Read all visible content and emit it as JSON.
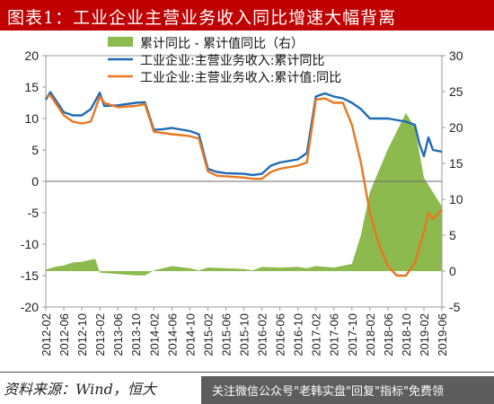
{
  "title": "图表1：工业企业主营业务收入同比增速大幅背离",
  "source": "资料来源：Wind，恒大",
  "watermark": "关注微信公众号\"老韩实盘\"回复\"指标\"免费领",
  "colors": {
    "bar_area": "#8dba4f",
    "line_yoy": "#1f6bb5",
    "line_cum_value": "#e87722",
    "title_bg": "#c00000"
  },
  "chart_data": {
    "type": "line",
    "x_tick_labels": [
      "2012-02",
      "2012-06",
      "2012-10",
      "2013-02",
      "2013-06",
      "2013-10",
      "2014-02",
      "2014-06",
      "2014-10",
      "2015-02",
      "2015-06",
      "2015-10",
      "2016-02",
      "2016-06",
      "2016-10",
      "2017-02",
      "2017-06",
      "2017-10",
      "2018-02",
      "2018-06",
      "2018-10",
      "2019-02",
      "2019-06"
    ],
    "x_start": "2012-02",
    "x_end": "2019-06",
    "y_left": {
      "min": -20,
      "max": 20,
      "ticks": [
        20,
        15,
        10,
        5,
        0,
        -5,
        -10,
        -15,
        -20
      ]
    },
    "y_right": {
      "min": -5,
      "max": 30,
      "ticks": [
        30,
        25,
        20,
        15,
        10,
        5,
        0,
        -5
      ]
    },
    "legend_placement": "top-center",
    "series": [
      {
        "name": "累计同比 - 累计值同比（右）",
        "type": "area",
        "axis": "right",
        "points": [
          [
            "2012-02",
            0.2
          ],
          [
            "2012-04",
            0.6
          ],
          [
            "2012-06",
            0.8
          ],
          [
            "2012-08",
            1.2
          ],
          [
            "2012-10",
            1.3
          ],
          [
            "2012-12",
            1.6
          ],
          [
            "2013-01",
            1.7
          ],
          [
            "2013-02",
            -0.2
          ],
          [
            "2013-06",
            -0.4
          ],
          [
            "2013-10",
            -0.6
          ],
          [
            "2013-12",
            -0.6
          ],
          [
            "2014-02",
            0.1
          ],
          [
            "2014-06",
            0.7
          ],
          [
            "2014-10",
            0.4
          ],
          [
            "2014-12",
            0.1
          ],
          [
            "2015-02",
            0.5
          ],
          [
            "2015-06",
            0.4
          ],
          [
            "2015-10",
            0.3
          ],
          [
            "2015-12",
            0.1
          ],
          [
            "2016-02",
            0.6
          ],
          [
            "2016-06",
            0.5
          ],
          [
            "2016-10",
            0.6
          ],
          [
            "2016-12",
            0.4
          ],
          [
            "2017-02",
            0.7
          ],
          [
            "2017-06",
            0.5
          ],
          [
            "2017-10",
            1.0
          ],
          [
            "2017-12",
            5.0
          ],
          [
            "2018-02",
            11.0
          ],
          [
            "2018-06",
            17.0
          ],
          [
            "2018-10",
            22.0
          ],
          [
            "2018-12",
            20.0
          ],
          [
            "2019-02",
            13.0
          ],
          [
            "2019-06",
            9.0
          ]
        ]
      },
      {
        "name": "工业企业:主营业务收入:累计同比",
        "type": "line",
        "axis": "left",
        "points": [
          [
            "2012-02",
            13.0
          ],
          [
            "2012-03",
            14.2
          ],
          [
            "2012-06",
            11.0
          ],
          [
            "2012-08",
            10.5
          ],
          [
            "2012-10",
            10.5
          ],
          [
            "2012-12",
            11.5
          ],
          [
            "2013-02",
            14.1
          ],
          [
            "2013-03",
            12.0
          ],
          [
            "2013-06",
            12.1
          ],
          [
            "2013-10",
            12.5
          ],
          [
            "2013-12",
            12.6
          ],
          [
            "2014-02",
            8.2
          ],
          [
            "2014-04",
            8.3
          ],
          [
            "2014-06",
            8.5
          ],
          [
            "2014-10",
            8.0
          ],
          [
            "2014-12",
            7.5
          ],
          [
            "2015-02",
            2.0
          ],
          [
            "2015-04",
            1.5
          ],
          [
            "2015-06",
            1.3
          ],
          [
            "2015-10",
            1.2
          ],
          [
            "2015-12",
            1.0
          ],
          [
            "2016-02",
            1.2
          ],
          [
            "2016-04",
            2.5
          ],
          [
            "2016-06",
            3.0
          ],
          [
            "2016-10",
            3.5
          ],
          [
            "2016-12",
            4.5
          ],
          [
            "2017-02",
            13.5
          ],
          [
            "2017-04",
            14.0
          ],
          [
            "2017-06",
            13.5
          ],
          [
            "2017-08",
            13.2
          ],
          [
            "2017-10",
            12.5
          ],
          [
            "2017-12",
            11.5
          ],
          [
            "2018-02",
            10.0
          ],
          [
            "2018-06",
            10.0
          ],
          [
            "2018-10",
            9.5
          ],
          [
            "2018-12",
            9.0
          ],
          [
            "2019-01",
            6.0
          ],
          [
            "2019-02",
            4.0
          ],
          [
            "2019-03",
            7.0
          ],
          [
            "2019-04",
            5.0
          ],
          [
            "2019-06",
            4.7
          ]
        ]
      },
      {
        "name": "工业企业:主营业务收入:累计值:同比",
        "type": "line",
        "axis": "left",
        "points": [
          [
            "2012-02",
            13.5
          ],
          [
            "2012-03",
            13.7
          ],
          [
            "2012-06",
            10.5
          ],
          [
            "2012-08",
            9.5
          ],
          [
            "2012-10",
            9.2
          ],
          [
            "2012-12",
            9.5
          ],
          [
            "2013-02",
            13.5
          ],
          [
            "2013-03",
            12.5
          ],
          [
            "2013-06",
            11.8
          ],
          [
            "2013-10",
            12.0
          ],
          [
            "2013-12",
            12.3
          ],
          [
            "2014-02",
            7.9
          ],
          [
            "2014-04",
            7.7
          ],
          [
            "2014-06",
            7.5
          ],
          [
            "2014-10",
            7.2
          ],
          [
            "2014-12",
            6.8
          ],
          [
            "2015-02",
            1.6
          ],
          [
            "2015-04",
            0.9
          ],
          [
            "2015-06",
            0.8
          ],
          [
            "2015-10",
            0.6
          ],
          [
            "2015-12",
            0.4
          ],
          [
            "2016-02",
            0.4
          ],
          [
            "2016-04",
            1.5
          ],
          [
            "2016-06",
            2.0
          ],
          [
            "2016-10",
            2.5
          ],
          [
            "2016-12",
            3.0
          ],
          [
            "2017-02",
            13.0
          ],
          [
            "2017-04",
            13.2
          ],
          [
            "2017-06",
            12.5
          ],
          [
            "2017-08",
            12.5
          ],
          [
            "2017-10",
            9.0
          ],
          [
            "2017-12",
            3.0
          ],
          [
            "2018-02",
            -5.0
          ],
          [
            "2018-04",
            -10.0
          ],
          [
            "2018-06",
            -13.5
          ],
          [
            "2018-08",
            -15.0
          ],
          [
            "2018-10",
            -15.0
          ],
          [
            "2018-12",
            -13.0
          ],
          [
            "2019-02",
            -8.0
          ],
          [
            "2019-03",
            -5.0
          ],
          [
            "2019-04",
            -6.0
          ],
          [
            "2019-06",
            -4.5
          ]
        ]
      }
    ]
  }
}
